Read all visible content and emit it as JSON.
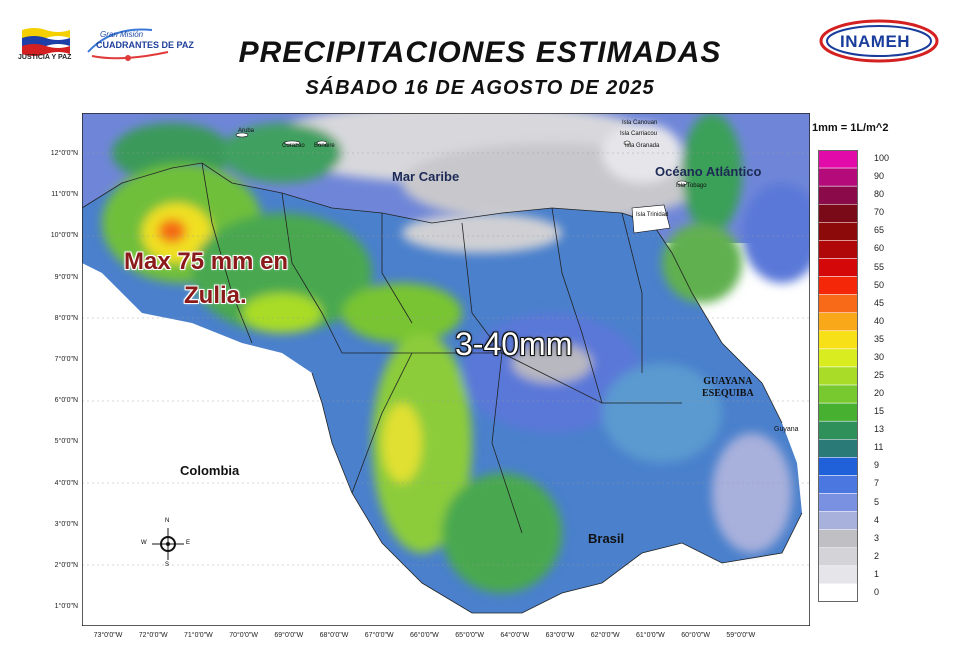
{
  "header": {
    "title": "PRECIPITACIONES ESTIMADAS",
    "subtitle": "SÁBADO 16 DE AGOSTO DE 2025"
  },
  "logos": {
    "left_caption": "JUSTICIA Y PAZ",
    "mision_line1": "Gran Misión",
    "mision_line2": "CUADRANTES DE PAZ",
    "right": "INAMEH"
  },
  "legend": {
    "unit": "1mm = 1L/m^2",
    "classes": [
      {
        "value": "100",
        "color": "#e20aa8"
      },
      {
        "value": "90",
        "color": "#b40a7a"
      },
      {
        "value": "80",
        "color": "#8a0a4a"
      },
      {
        "value": "70",
        "color": "#7a0a18"
      },
      {
        "value": "65",
        "color": "#8c0a0a"
      },
      {
        "value": "60",
        "color": "#b00808"
      },
      {
        "value": "55",
        "color": "#d40808"
      },
      {
        "value": "50",
        "color": "#f42808"
      },
      {
        "value": "45",
        "color": "#f86a18"
      },
      {
        "value": "40",
        "color": "#f8a818"
      },
      {
        "value": "35",
        "color": "#f8e018"
      },
      {
        "value": "30",
        "color": "#d8ec20"
      },
      {
        "value": "25",
        "color": "#a8dc28"
      },
      {
        "value": "20",
        "color": "#78c830"
      },
      {
        "value": "15",
        "color": "#48b030"
      },
      {
        "value": "13",
        "color": "#30905a"
      },
      {
        "value": "11",
        "color": "#2a7a78"
      },
      {
        "value": "9",
        "color": "#2060d8"
      },
      {
        "value": "7",
        "color": "#4a78e0"
      },
      {
        "value": "5",
        "color": "#7a90e0"
      },
      {
        "value": "4",
        "color": "#a8b0dc"
      },
      {
        "value": "3",
        "color": "#c0c0c4"
      },
      {
        "value": "2",
        "color": "#d4d4d8"
      },
      {
        "value": "1",
        "color": "#e6e6ea"
      },
      {
        "value": "0",
        "color": "#ffffff"
      }
    ]
  },
  "axes": {
    "lat": [
      "12°0'0\"N",
      "11°0'0\"N",
      "10°0'0\"N",
      "9°0'0\"N",
      "8°0'0\"N",
      "7°0'0\"N",
      "6°0'0\"N",
      "5°0'0\"N",
      "4°0'0\"N",
      "3°0'0\"N",
      "2°0'0\"N",
      "1°0'0\"N"
    ],
    "lon": [
      "73°0'0\"W",
      "72°0'0\"W",
      "71°0'0\"W",
      "70°0'0\"W",
      "69°0'0\"W",
      "68°0'0\"W",
      "67°0'0\"W",
      "66°0'0\"W",
      "65°0'0\"W",
      "64°0'0\"W",
      "63°0'0\"W",
      "62°0'0\"W",
      "61°0'0\"W",
      "60°0'0\"W",
      "59°0'0\"W"
    ]
  },
  "map_labels": {
    "caribe": "Mar Caribe",
    "atlantico": "Océano Atlántico",
    "colombia": "Colombia",
    "brasil": "Brasil",
    "guayana_line1": "GUAYANA",
    "guayana_line2": "ESEQUIBA",
    "guyana": "Guyana",
    "max_line1": "Max 75 mm en",
    "max_line2": "Zulia.",
    "range": "3-40mm"
  },
  "islands": {
    "aruba": "Aruba",
    "curazao": "Curazao",
    "bonaire": "Bonaire",
    "canouan": "Isla Canouan",
    "carriacou": "Isla Carriacou",
    "granada": "Isla Granada",
    "tobago": "Isla Tobago",
    "trinidad": "Isla Trinidad"
  },
  "compass": {
    "n": "N",
    "s": "S",
    "e": "E",
    "w": "W"
  }
}
